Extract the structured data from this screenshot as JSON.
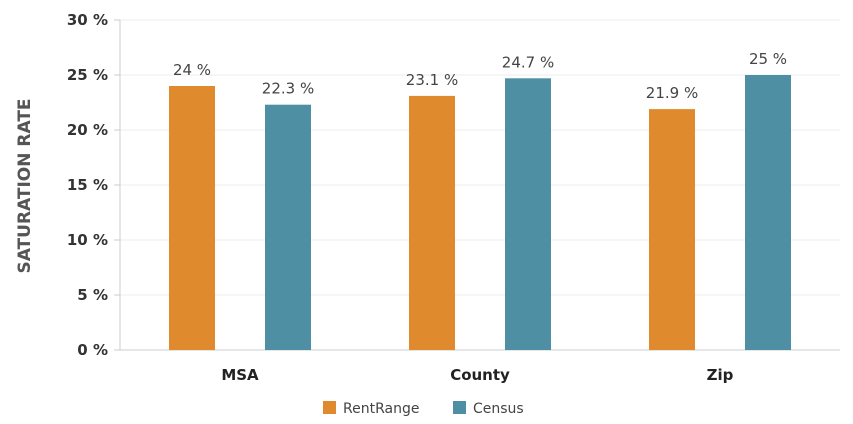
{
  "chart_data": {
    "type": "bar",
    "title": "",
    "xlabel": "",
    "ylabel": "SATURATION RATE",
    "categories": [
      "MSA",
      "County",
      "Zip"
    ],
    "series": [
      {
        "name": "RentRange",
        "values": [
          24,
          23.1,
          21.9
        ],
        "labels": [
          "24 %",
          "23.1 %",
          "21.9 %"
        ],
        "color": "#e08a2e"
      },
      {
        "name": "Census",
        "values": [
          22.3,
          24.7,
          25
        ],
        "labels": [
          "22.3 %",
          "24.7 %",
          "25 %"
        ],
        "color": "#4f8fa3"
      }
    ],
    "ylim": [
      0,
      30
    ],
    "yticks": [
      0,
      5,
      10,
      15,
      20,
      25,
      30
    ],
    "ytick_labels": [
      "0 %",
      "5 %",
      "10 %",
      "15 %",
      "20 %",
      "25 %",
      "30 %"
    ],
    "grid": true,
    "legend_position": "bottom"
  }
}
